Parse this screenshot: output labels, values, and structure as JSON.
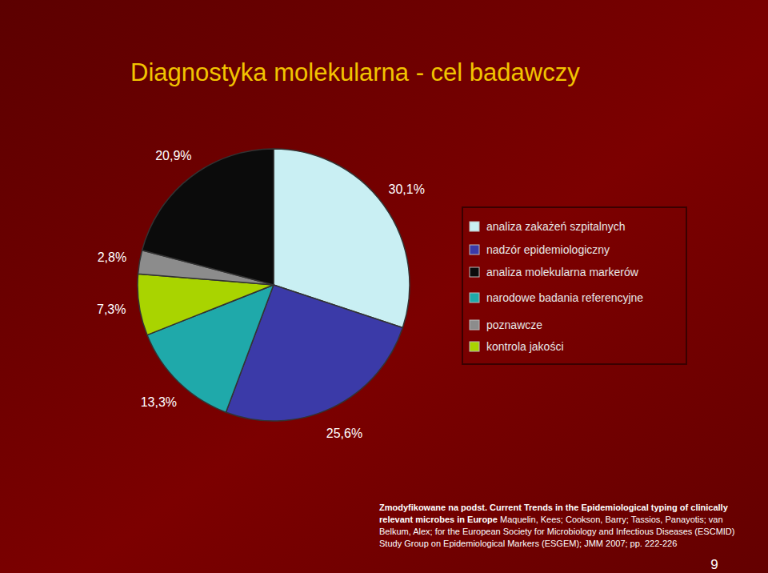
{
  "chart_data": {
    "type": "pie",
    "title": "Diagnostyka molekularna - cel badawczy",
    "categories": [
      "analiza zakażeń szpitalnych",
      "nadzór epidemiologiczny",
      "narodowe badania referencyjne",
      "kontrola jakości",
      "poznawcze",
      "analiza molekularna markerów"
    ],
    "values": [
      30.1,
      25.6,
      13.3,
      7.3,
      2.8,
      20.9
    ],
    "value_labels": [
      "30,1%",
      "25,6%",
      "13,3%",
      "7,3%",
      "2,8%",
      "20,9%"
    ],
    "colors": [
      "#c9eff3",
      "#3b3aa8",
      "#1fa9aa",
      "#a9d400",
      "#8c8c8c",
      "#0b0b0b"
    ],
    "data_labels": true,
    "legend": "right",
    "source": {
      "bold": "Zmodyfikowane na podst. Current Trends in the Epidemiological typing of clinically relevant microbes in Europe",
      "text": "Maquelin, Kees; Cookson, Barry; Tassios, Panayotis; van Belkum, Alex; for the European Society for Microbiology and Infectious Diseases (ESCMID) Study Group on Epidemiological Markers (ESGEM); JMM 2007; pp. 222-226"
    },
    "page_number": "9"
  }
}
